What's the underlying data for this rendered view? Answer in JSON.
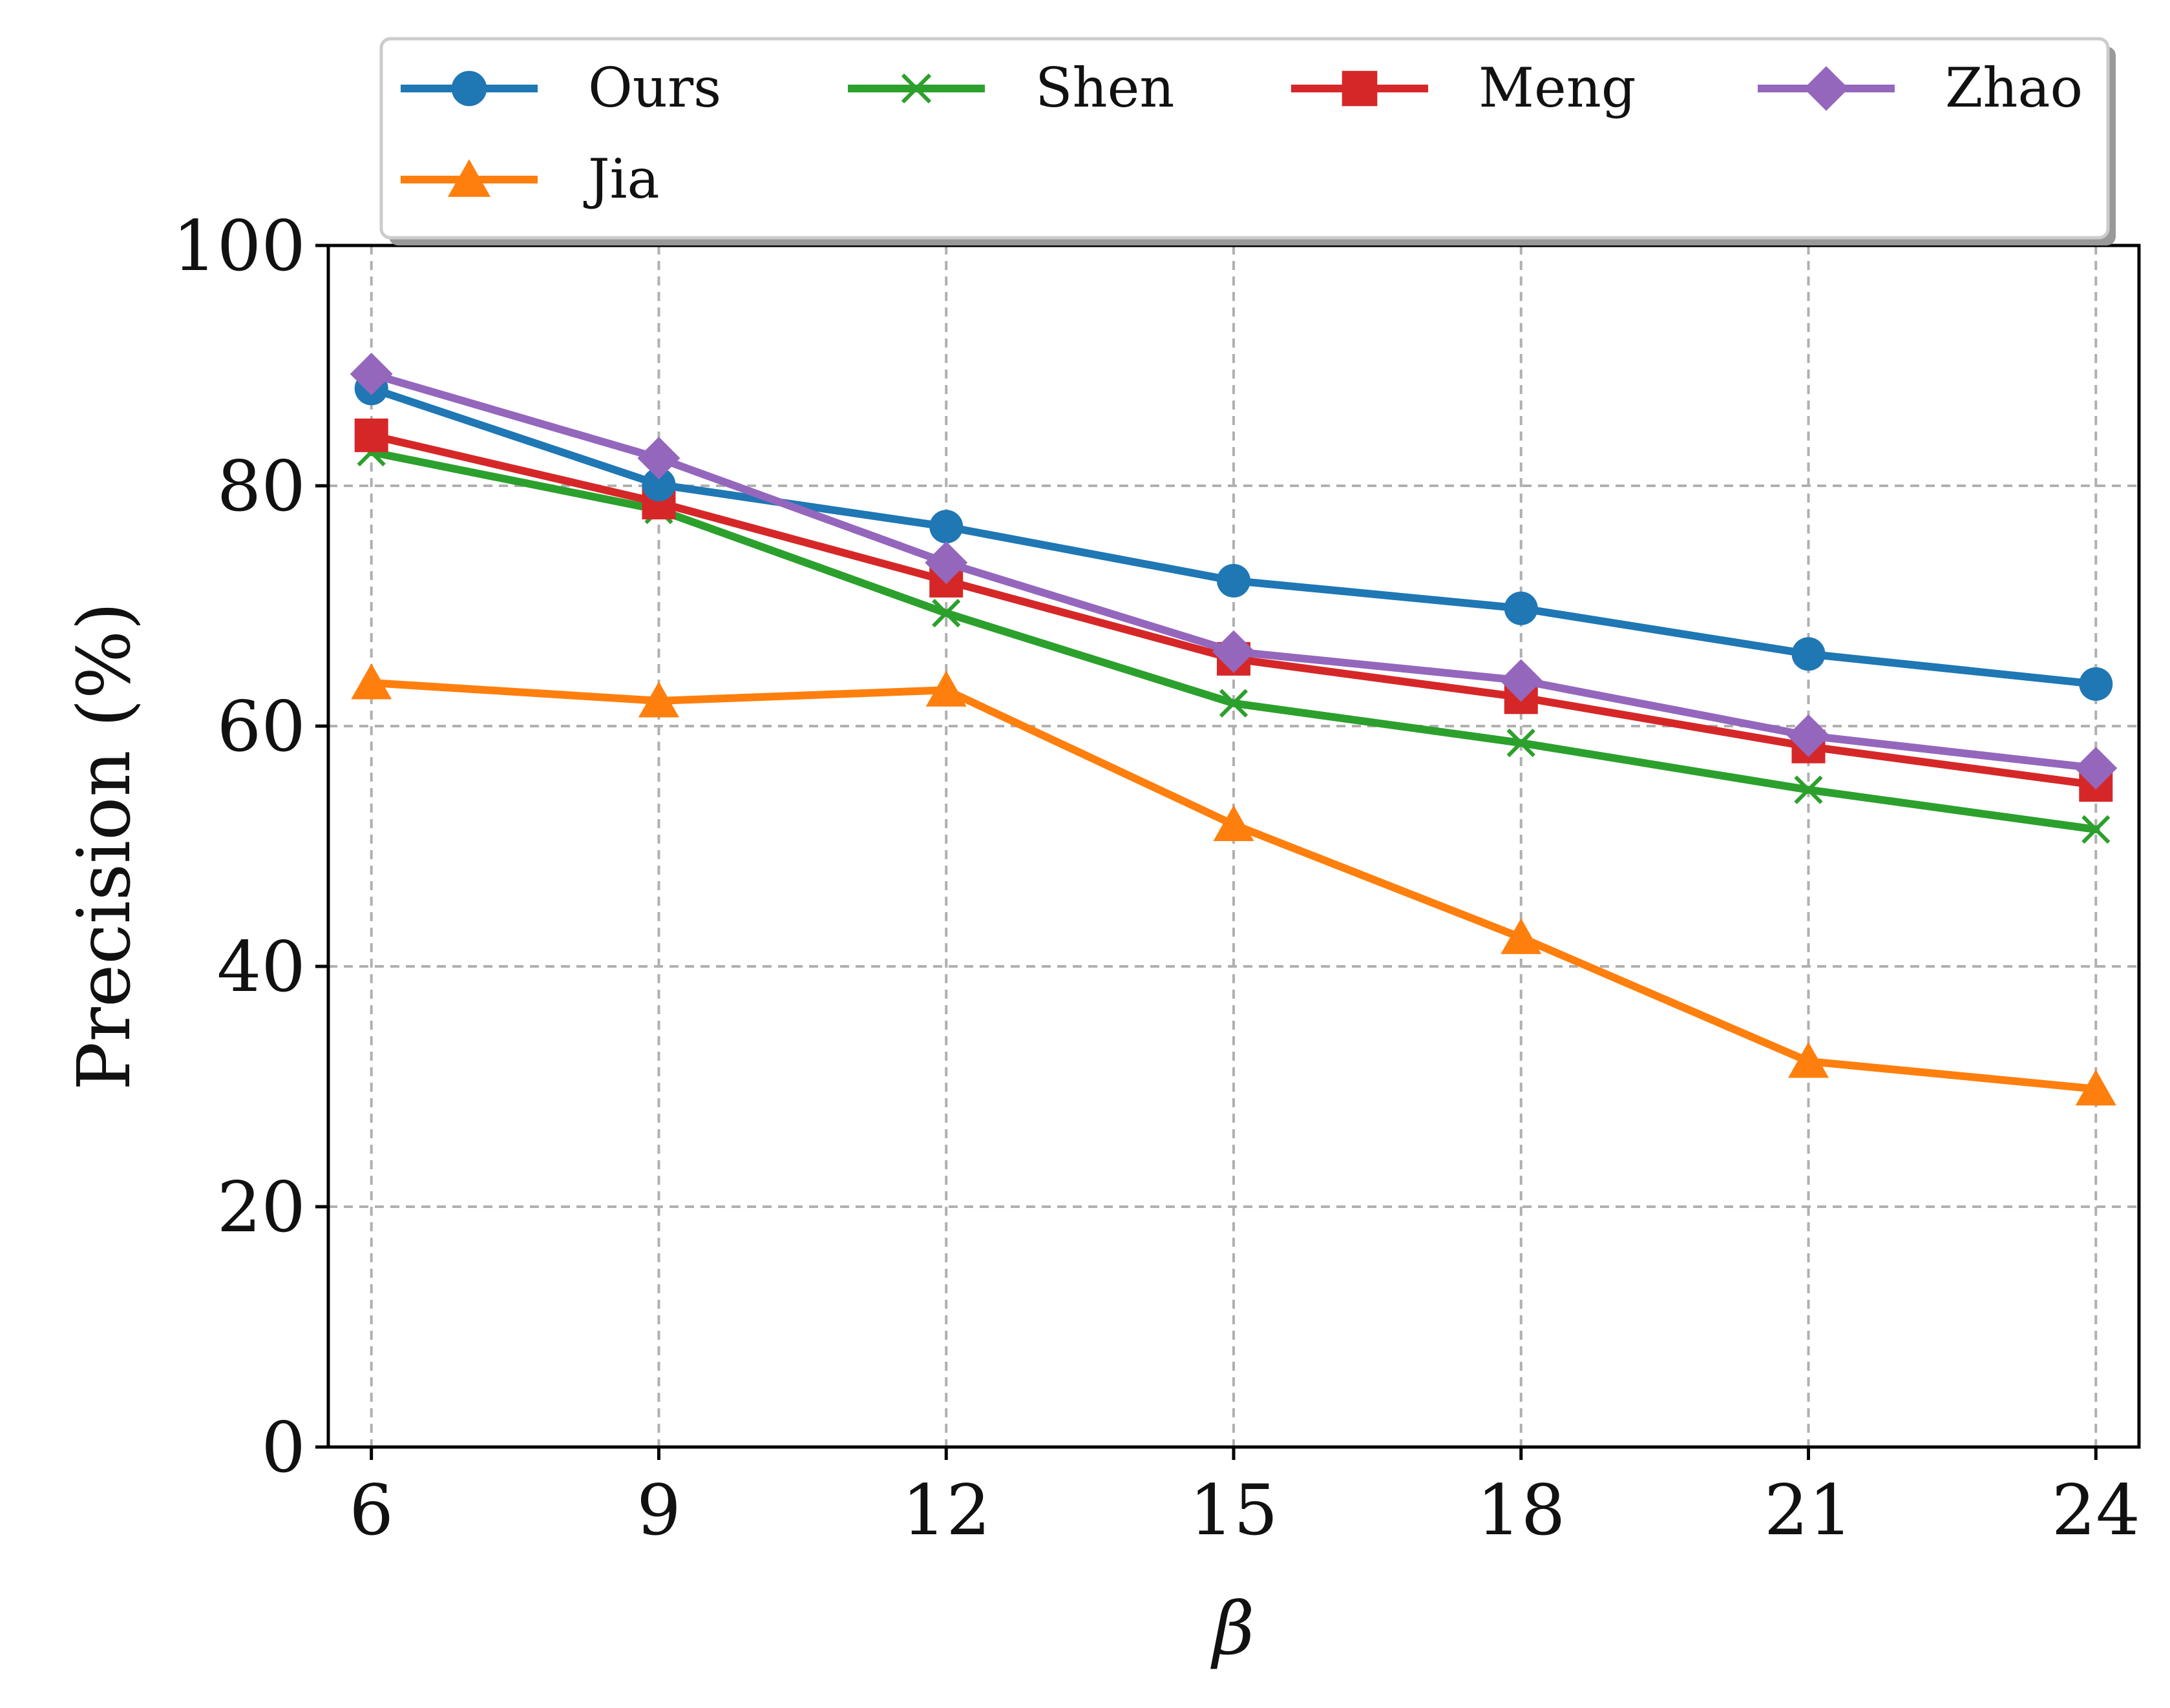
{
  "chart_data": {
    "type": "line",
    "xlabel": "β",
    "ylabel": "Precision (%)",
    "x": [
      6,
      9,
      12,
      15,
      18,
      21,
      24
    ],
    "xticks": [
      "6",
      "9",
      "12",
      "15",
      "18",
      "21",
      "24"
    ],
    "xlim": [
      5.55,
      24.45
    ],
    "ylim": [
      0,
      100
    ],
    "yticks": [
      "0",
      "20",
      "40",
      "60",
      "80",
      "100"
    ],
    "grid": true,
    "legend_position": "top, above plot",
    "series": [
      {
        "name": "Ours",
        "color": "#1f77b4",
        "marker": "circle",
        "values": [
          88.1,
          80.1,
          76.6,
          72.1,
          69.8,
          66.0,
          63.5
        ]
      },
      {
        "name": "Shen",
        "color": "#2ca02c",
        "marker": "x",
        "values": [
          82.8,
          78.0,
          69.4,
          61.9,
          58.6,
          54.7,
          51.4
        ]
      },
      {
        "name": "Meng",
        "color": "#d62728",
        "marker": "square",
        "values": [
          84.2,
          78.6,
          72.1,
          65.6,
          62.4,
          58.3,
          55.1
        ]
      },
      {
        "name": "Zhao",
        "color": "#9467bd",
        "marker": "diamond",
        "values": [
          89.3,
          82.3,
          73.6,
          66.2,
          63.8,
          59.2,
          56.5
        ]
      },
      {
        "name": "Jia",
        "color": "#ff7f0e",
        "marker": "triangle",
        "values": [
          63.6,
          62.1,
          63.0,
          51.8,
          42.4,
          32.1,
          29.8
        ]
      }
    ]
  }
}
